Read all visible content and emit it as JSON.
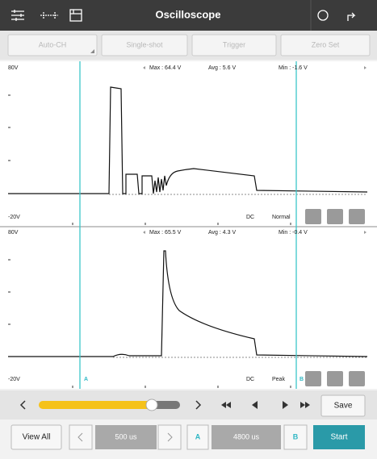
{
  "header": {
    "title": "Oscilloscope"
  },
  "toolbar": [
    "Auto-CH",
    "Single-shot",
    "Trigger",
    "Zero Set"
  ],
  "channels": [
    {
      "top": "80V",
      "max": "Max : 64.4 V",
      "avg": "Avg : 5.6 V",
      "min": "Min : -1.6 V",
      "bottom": "-20V",
      "coupling": "DC",
      "mode": "Normal"
    },
    {
      "top": "80V",
      "max": "Max : 65.5 V",
      "avg": "Avg : 4.3 V",
      "min": "Min : -0.4 V",
      "bottom": "-20V",
      "coupling": "DC",
      "mode": "Peak",
      "cursor_a": "A",
      "cursor_b": "B"
    }
  ],
  "controls": {
    "save": "Save",
    "view_all": "View All",
    "time_base": "500 us",
    "cursor_a": "A",
    "cursor_span": "4800 us",
    "cursor_b": "B",
    "start": "Start"
  }
}
